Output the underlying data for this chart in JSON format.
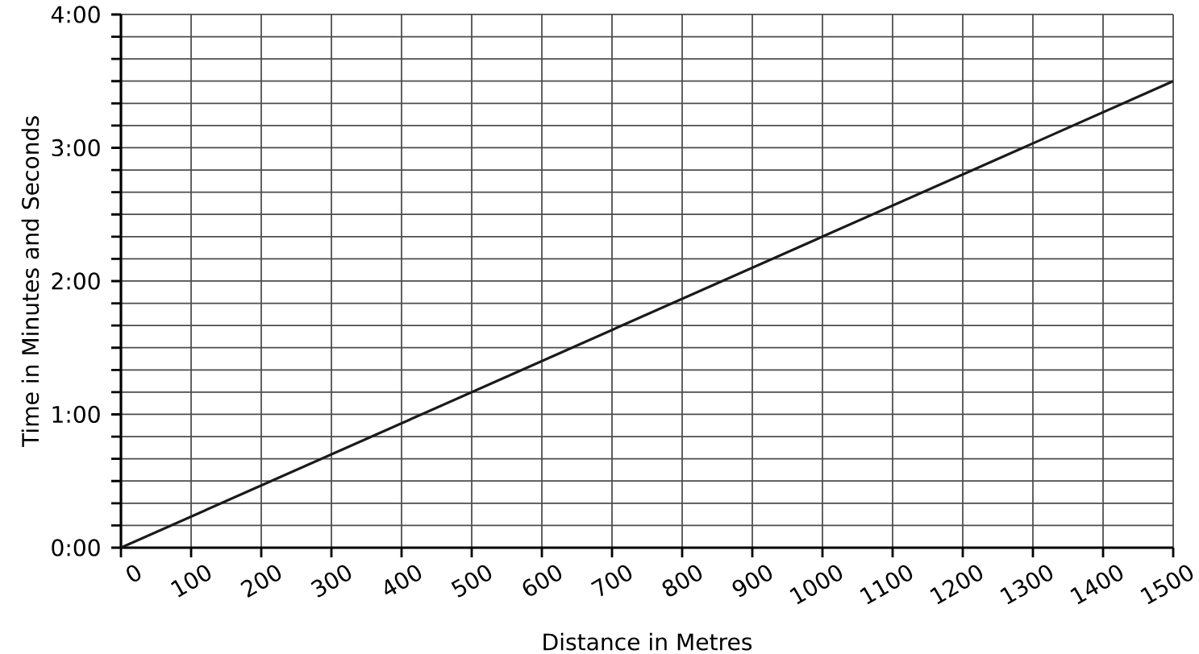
{
  "chart_data": {
    "type": "line",
    "xlabel": "Distance in Metres",
    "ylabel": "Time in Minutes and Seconds",
    "x": [
      0,
      1500
    ],
    "series": [
      {
        "color": "#1a1a1a",
        "values": [
          0,
          210
        ]
      }
    ],
    "xlim": [
      0,
      1500
    ],
    "xticks": [
      0,
      100,
      200,
      300,
      400,
      500,
      600,
      700,
      800,
      900,
      1000,
      1100,
      1200,
      1300,
      1400,
      1500
    ],
    "ylim": [
      0,
      240
    ],
    "yticks": [
      {
        "value": 0,
        "label": "0:00"
      },
      {
        "value": 10,
        "label": null
      },
      {
        "value": 20,
        "label": null
      },
      {
        "value": 30,
        "label": null
      },
      {
        "value": 40,
        "label": null
      },
      {
        "value": 50,
        "label": null
      },
      {
        "value": 60,
        "label": "1:00"
      },
      {
        "value": 70,
        "label": null
      },
      {
        "value": 80,
        "label": null
      },
      {
        "value": 90,
        "label": null
      },
      {
        "value": 100,
        "label": null
      },
      {
        "value": 110,
        "label": null
      },
      {
        "value": 120,
        "label": "2:00"
      },
      {
        "value": 130,
        "label": null
      },
      {
        "value": 140,
        "label": null
      },
      {
        "value": 150,
        "label": null
      },
      {
        "value": 160,
        "label": null
      },
      {
        "value": 170,
        "label": null
      },
      {
        "value": 180,
        "label": "3:00"
      },
      {
        "value": 190,
        "label": null
      },
      {
        "value": 200,
        "label": null
      },
      {
        "value": 210,
        "label": null
      },
      {
        "value": 220,
        "label": null
      },
      {
        "value": 230,
        "label": null
      },
      {
        "value": 240,
        "label": "4:00"
      }
    ],
    "grid": true,
    "marker": "none",
    "line_style": "solid"
  }
}
